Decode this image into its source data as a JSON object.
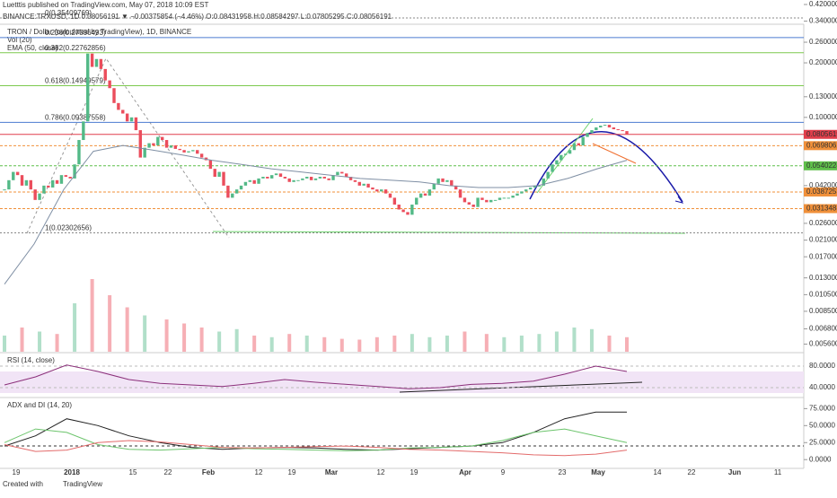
{
  "header": {
    "publisher": "Luetttis published on TradingView.com, May 07, 2018 10:09 EST",
    "symbol_line": "BINANCE:TRXUSD, 1D 0.08056191 ▼ −0.00375854 (−4.46%) O:0.08431958 H:0.08584297 L:0.07805295 C:0.08056191"
  },
  "footer": {
    "created_with": "Created with",
    "brand": "TradingView"
  },
  "chart_data": [
    {
      "type": "candlestick",
      "title": "TRON / Dollar (calculated by TradingView), 1D, BINANCE",
      "log_scale": true,
      "up_color": "#53b987",
      "down_color": "#eb4d5c",
      "closes": [
        0.04,
        0.045,
        0.05,
        0.048,
        0.042,
        0.045,
        0.04,
        0.035,
        0.038,
        0.042,
        0.041,
        0.045,
        0.043,
        0.048,
        0.047,
        0.046,
        0.055,
        0.075,
        0.095,
        0.225,
        0.19,
        0.21,
        0.185,
        0.16,
        0.145,
        0.12,
        0.11,
        0.105,
        0.095,
        0.1,
        0.085,
        0.06,
        0.068,
        0.072,
        0.07,
        0.078,
        0.075,
        0.068,
        0.07,
        0.067,
        0.066,
        0.064,
        0.065,
        0.066,
        0.063,
        0.06,
        0.058,
        0.052,
        0.047,
        0.05,
        0.042,
        0.036,
        0.038,
        0.04,
        0.042,
        0.044,
        0.045,
        0.043,
        0.046,
        0.047,
        0.046,
        0.048,
        0.049,
        0.047,
        0.046,
        0.044,
        0.045,
        0.045,
        0.046,
        0.047,
        0.045,
        0.046,
        0.047,
        0.046,
        0.045,
        0.048,
        0.05,
        0.049,
        0.047,
        0.045,
        0.044,
        0.042,
        0.043,
        0.041,
        0.04,
        0.039,
        0.04,
        0.038,
        0.036,
        0.033,
        0.031,
        0.03,
        0.029,
        0.033,
        0.036,
        0.038,
        0.037,
        0.04,
        0.043,
        0.046,
        0.044,
        0.045,
        0.042,
        0.04,
        0.036,
        0.034,
        0.033,
        0.032,
        0.036,
        0.035,
        0.034,
        0.035,
        0.035,
        0.036,
        0.036,
        0.036,
        0.037,
        0.038,
        0.039,
        0.04,
        0.041,
        0.042,
        0.042,
        0.046,
        0.05,
        0.055,
        0.058,
        0.062,
        0.063,
        0.066,
        0.072,
        0.07,
        0.078,
        0.082,
        0.085,
        0.088,
        0.09,
        0.091,
        0.088,
        0.086,
        0.085,
        0.084,
        0.08056191
      ],
      "volume": {
        "name": "Vol (20)",
        "values": [
          20,
          30,
          25,
          22,
          60,
          90,
          70,
          55,
          45,
          40,
          35,
          30,
          25,
          28,
          20,
          18,
          22,
          20,
          18,
          16,
          15,
          18,
          20,
          22,
          18,
          20,
          25,
          22,
          18,
          20,
          22,
          25,
          30,
          28,
          20,
          18
        ]
      },
      "ema": {
        "name": "EMA (50, close)",
        "color": "#7f8fa4",
        "values": [
          0.012,
          0.02,
          0.04,
          0.065,
          0.07,
          0.066,
          0.062,
          0.058,
          0.055,
          0.052,
          0.05,
          0.048,
          0.046,
          0.045,
          0.044,
          0.042,
          0.041,
          0.041,
          0.042,
          0.046,
          0.052,
          0.058
        ]
      },
      "ylim": [
        0.0052,
        0.42
      ],
      "yticks": [
        {
          "value": 0.42,
          "label": "0.42000000"
        },
        {
          "value": 0.34,
          "label": "0.34000000"
        },
        {
          "value": 0.26,
          "label": "0.26000000"
        },
        {
          "value": 0.2,
          "label": "0.20000000"
        },
        {
          "value": 0.13,
          "label": "0.13000000"
        },
        {
          "value": 0.1,
          "label": "0.10000000"
        },
        {
          "value": 0.042,
          "label": "0.04200000"
        },
        {
          "value": 0.026,
          "label": "0.02600000"
        },
        {
          "value": 0.021,
          "label": "0.02100000"
        },
        {
          "value": 0.017,
          "label": "0.01700000"
        },
        {
          "value": 0.013,
          "label": "0.01300000"
        },
        {
          "value": 0.0105,
          "label": "0.01050000"
        },
        {
          "value": 0.0085,
          "label": "0.00850000"
        },
        {
          "value": 0.0068,
          "label": "0.00680000"
        },
        {
          "value": 0.0056,
          "label": "0.00560000"
        }
      ],
      "price_lines": [
        {
          "value": 0.08056191,
          "label": "0.08056191",
          "color": "#e03e4b"
        },
        {
          "value": 0.06980626,
          "label": "0.06980626",
          "color": "#f0903a"
        },
        {
          "value": 0.05402245,
          "label": "0.05402245",
          "color": "#5fbf4a"
        },
        {
          "value": 0.03872535,
          "label": "0.03872535",
          "color": "#f0903a"
        },
        {
          "value": 0.03134885,
          "label": "0.03134885",
          "color": "#f0903a"
        }
      ],
      "fib_levels": [
        {
          "label": "0(0.35409769)",
          "value": 0.35409769,
          "color": "#888888"
        },
        {
          "label": "0.236(0.27596493)",
          "value": 0.27596493,
          "color": "#4b7bd1"
        },
        {
          "label": "0.382(0.22762856)",
          "value": 0.22762856,
          "color": "#7dc94f"
        },
        {
          "label": "0.618(0.14949579)",
          "value": 0.14949579,
          "color": "#7dc94f"
        },
        {
          "label": "0.786(0.09387558)",
          "value": 0.09387558,
          "color": "#4b7bd1"
        },
        {
          "label": "1(0.02302656)",
          "value": 0.02302656,
          "color": "#888888"
        }
      ],
      "x_ticks": [
        "19",
        "2018",
        "15",
        "22",
        "Feb",
        "12",
        "19",
        "Mar",
        "12",
        "19",
        "Apr",
        "9",
        "23",
        "May",
        "14",
        "22",
        "Jun",
        "11"
      ]
    },
    {
      "type": "line",
      "title": "RSI (14, close)",
      "color": "#8b2f7a",
      "values": [
        45,
        60,
        82,
        70,
        55,
        48,
        45,
        42,
        48,
        55,
        50,
        46,
        42,
        38,
        40,
        46,
        48,
        52,
        65,
        80,
        70
      ],
      "ylim": [
        20,
        100
      ],
      "yticks": [
        {
          "value": 80,
          "label": "80.0000"
        },
        {
          "value": 40,
          "label": "40.0000"
        }
      ]
    },
    {
      "type": "line",
      "title": "ADX and DI (14, 20)",
      "series": [
        {
          "name": "ADX",
          "color": "#222222",
          "values": [
            20,
            35,
            60,
            50,
            35,
            25,
            18,
            15,
            17,
            18,
            17,
            15,
            14,
            16,
            18,
            20,
            25,
            40,
            60,
            70,
            70
          ]
        },
        {
          "name": "+DI",
          "color": "#6cc46c",
          "values": [
            25,
            45,
            40,
            22,
            15,
            14,
            16,
            18,
            16,
            15,
            14,
            13,
            14,
            17,
            18,
            20,
            28,
            40,
            45,
            35,
            25
          ]
        },
        {
          "name": "-DI",
          "color": "#e36b6b",
          "values": [
            22,
            12,
            14,
            25,
            28,
            26,
            22,
            18,
            17,
            18,
            19,
            20,
            18,
            15,
            14,
            12,
            10,
            7,
            6,
            8,
            14
          ]
        }
      ],
      "ylim": [
        -5,
        90
      ],
      "yticks": [
        {
          "value": 75,
          "label": "75.0000"
        },
        {
          "value": 50,
          "label": "50.0000"
        },
        {
          "value": 25,
          "label": "25.0000"
        },
        {
          "value": 0,
          "label": "0.0000"
        }
      ]
    }
  ]
}
